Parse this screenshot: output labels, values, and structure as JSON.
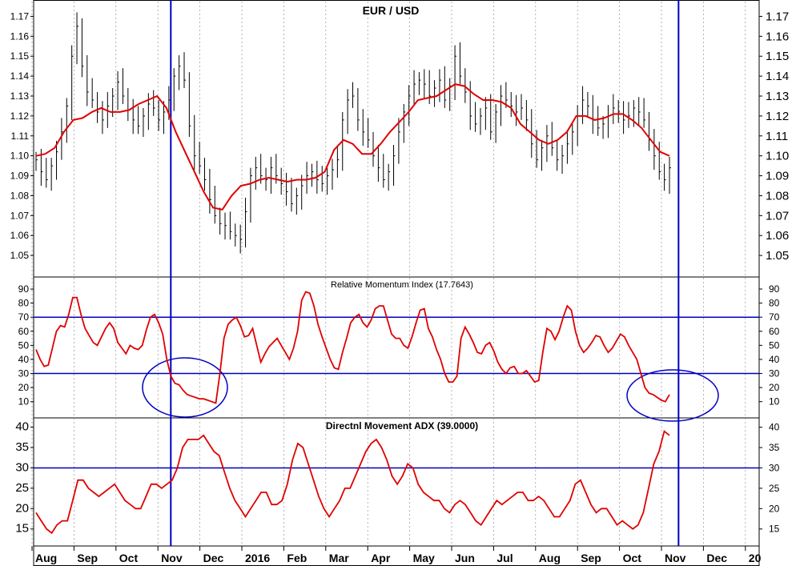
{
  "colors": {
    "price_bars": "#000000",
    "moving_average": "#e00000",
    "indicator_line": "#e00000",
    "reference_lines": "#0000c0",
    "grid": "#808080",
    "background": "#ffffff"
  },
  "chart_data": [
    {
      "type": "ohlc",
      "title": "EUR / USD",
      "ylim": [
        1.04,
        1.175
      ],
      "yticks": [
        "1.05",
        "1.06",
        "1.07",
        "1.08",
        "1.09",
        "1.10",
        "1.11",
        "1.12",
        "1.13",
        "1.14",
        "1.15",
        "1.16",
        "1.17"
      ],
      "x_axis_labels": [
        "Aug",
        "Sep",
        "Oct",
        "Nov",
        "Dec",
        "2016",
        "Feb",
        "Mar",
        "Apr",
        "May",
        "Jun",
        "Jul",
        "Aug",
        "Sep",
        "Oct",
        "Nov",
        "Dec",
        "20"
      ],
      "price_closes": [
        1.098,
        1.092,
        1.088,
        1.095,
        1.102,
        1.112,
        1.125,
        1.15,
        1.165,
        1.145,
        1.132,
        1.128,
        1.122,
        1.118,
        1.125,
        1.13,
        1.137,
        1.13,
        1.123,
        1.118,
        1.115,
        1.12,
        1.126,
        1.124,
        1.118,
        1.122,
        1.128,
        1.14,
        1.145,
        1.138,
        1.115,
        1.1,
        1.095,
        1.088,
        1.078,
        1.07,
        1.066,
        1.065,
        1.062,
        1.06,
        1.058,
        1.072,
        1.09,
        1.094,
        1.09,
        1.088,
        1.094,
        1.09,
        1.086,
        1.082,
        1.076,
        1.08,
        1.085,
        1.09,
        1.092,
        1.088,
        1.086,
        1.09,
        1.093,
        1.098,
        1.118,
        1.128,
        1.13,
        1.118,
        1.112,
        1.108,
        1.1,
        1.094,
        1.088,
        1.092,
        1.1,
        1.112,
        1.122,
        1.13,
        1.136,
        1.138,
        1.136,
        1.13,
        1.134,
        1.138,
        1.128,
        1.135,
        1.15,
        1.14,
        1.132,
        1.12,
        1.116,
        1.12,
        1.124,
        1.112,
        1.122,
        1.13,
        1.128,
        1.125,
        1.122,
        1.124,
        1.118,
        1.106,
        1.098,
        1.104,
        1.11,
        1.104,
        1.098,
        1.1,
        1.106,
        1.112,
        1.12,
        1.128,
        1.125,
        1.118,
        1.114,
        1.116,
        1.12,
        1.124,
        1.122,
        1.118,
        1.12,
        1.124,
        1.122,
        1.118,
        1.108,
        1.1,
        1.092,
        1.088,
        1.094
      ],
      "moving_average": [
        1.1,
        1.101,
        1.104,
        1.112,
        1.118,
        1.119,
        1.122,
        1.124,
        1.122,
        1.122,
        1.123,
        1.126,
        1.128,
        1.13,
        1.124,
        1.112,
        1.102,
        1.092,
        1.082,
        1.074,
        1.073,
        1.08,
        1.085,
        1.086,
        1.088,
        1.089,
        1.088,
        1.087,
        1.088,
        1.088,
        1.089,
        1.092,
        1.103,
        1.108,
        1.106,
        1.101,
        1.101,
        1.106,
        1.112,
        1.117,
        1.122,
        1.128,
        1.129,
        1.13,
        1.133,
        1.136,
        1.135,
        1.131,
        1.128,
        1.128,
        1.127,
        1.124,
        1.116,
        1.112,
        1.108,
        1.106,
        1.108,
        1.112,
        1.12,
        1.12,
        1.118,
        1.119,
        1.121,
        1.121,
        1.118,
        1.114,
        1.108,
        1.102,
        1.1
      ],
      "reference_lines": [],
      "vertical_markers_month_pos": [
        3.25,
        15.35
      ]
    },
    {
      "type": "line",
      "title": "Relative Momentum Index (17.7643)",
      "ylim": [
        3,
        94
      ],
      "yticks": [
        "10",
        "20",
        "30",
        "40",
        "50",
        "60",
        "70",
        "80",
        "90"
      ],
      "reference_lines": [
        30,
        70
      ],
      "values": [
        47,
        40,
        35,
        36,
        48,
        60,
        64,
        63,
        72,
        84,
        84,
        72,
        62,
        57,
        52,
        50,
        56,
        62,
        66,
        62,
        52,
        48,
        44,
        50,
        48,
        47,
        50,
        61,
        70,
        72,
        66,
        58,
        40,
        28,
        23,
        22,
        18,
        15,
        14,
        13,
        12,
        12,
        11,
        10,
        9,
        30,
        55,
        65,
        68,
        70,
        64,
        56,
        57,
        62,
        50,
        38,
        44,
        49,
        52,
        55,
        50,
        45,
        40,
        48,
        60,
        82,
        88,
        87,
        78,
        65,
        56,
        48,
        40,
        34,
        33,
        45,
        55,
        66,
        70,
        72,
        66,
        63,
        68,
        76,
        78,
        78,
        68,
        58,
        55,
        55,
        50,
        48,
        56,
        66,
        75,
        76,
        62,
        56,
        47,
        40,
        30,
        24,
        24,
        28,
        55,
        63,
        58,
        52,
        45,
        44,
        50,
        52,
        46,
        38,
        33,
        30,
        34,
        35,
        30,
        30,
        32,
        28,
        24,
        25,
        45,
        62,
        60,
        54,
        60,
        70,
        78,
        75,
        60,
        50,
        45,
        48,
        52,
        57,
        56,
        50,
        45,
        48,
        53,
        58,
        56,
        50,
        45,
        40,
        30,
        20,
        16,
        15,
        13,
        11,
        10,
        15
      ]
    },
    {
      "type": "line",
      "title": "Directnl Movement ADX (39.0000)",
      "ylim": [
        12,
        41.5
      ],
      "yticks": [
        "15",
        "20",
        "25",
        "30",
        "35",
        "40"
      ],
      "reference_lines": [
        30
      ],
      "values": [
        19,
        17,
        15,
        14,
        16,
        17,
        17,
        22,
        27,
        27,
        25,
        24,
        23,
        24,
        25,
        26,
        24,
        22,
        21,
        20,
        20,
        23,
        26,
        26,
        25,
        26,
        27,
        30,
        35,
        37,
        37,
        37,
        38,
        36,
        34,
        33,
        29,
        25,
        22,
        20,
        18,
        20,
        22,
        24,
        24,
        21,
        21,
        22,
        26,
        32,
        36,
        35,
        31,
        27,
        23,
        20,
        18,
        20,
        22,
        25,
        25,
        28,
        31,
        34,
        36,
        37,
        35,
        32,
        28,
        26,
        28,
        31,
        30,
        26,
        24,
        23,
        22,
        22,
        20,
        19,
        21,
        22,
        21,
        19,
        17,
        16,
        18,
        20,
        22,
        21,
        22,
        23,
        24,
        24,
        22,
        22,
        23,
        22,
        20,
        18,
        18,
        20,
        22,
        26,
        27,
        24,
        21,
        19,
        20,
        20,
        18,
        16,
        17,
        16,
        15,
        16,
        19,
        25,
        31,
        34,
        39,
        38
      ]
    }
  ]
}
